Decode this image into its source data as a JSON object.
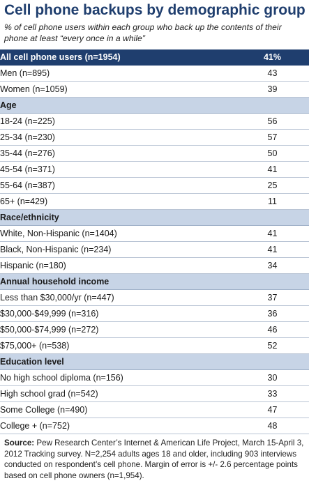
{
  "title": "Cell phone backups by demographic group",
  "subtitle": "% of cell phone users within each group who back up the contents of their phone at least “every once in a while”",
  "source_label": "Source:",
  "source_text": " Pew Research Center’s Internet & American Life Project, March 15-April 3, 2012 Tracking survey. N=2,254 adults ages 18 and older, including 903 interviews conducted on respondent’s cell phone. Margin of error is +/- 2.6 percentage points based on cell phone owners (n=1,954).",
  "chart_data": {
    "type": "table",
    "title": "Cell phone backups by demographic group",
    "total": {
      "label": "All cell phone users (n=1954)",
      "value": "41%"
    },
    "groups": [
      {
        "heading": "",
        "rows": [
          {
            "label": "Men (n=895)",
            "value": 43
          },
          {
            "label": "Women (n=1059)",
            "value": 39
          }
        ]
      },
      {
        "heading": "Age",
        "rows": [
          {
            "label": "18-24 (n=225)",
            "value": 56
          },
          {
            "label": "25-34 (n=230)",
            "value": 57
          },
          {
            "label": "35-44 (n=276)",
            "value": 50
          },
          {
            "label": "45-54 (n=371)",
            "value": 41
          },
          {
            "label": "55-64 (n=387)",
            "value": 25
          },
          {
            "label": "65+ (n=429)",
            "value": 11
          }
        ]
      },
      {
        "heading": "Race/ethnicity",
        "rows": [
          {
            "label": "White, Non-Hispanic (n=1404)",
            "value": 41
          },
          {
            "label": "Black, Non-Hispanic (n=234)",
            "value": 41
          },
          {
            "label": "Hispanic (n=180)",
            "value": 34
          }
        ]
      },
      {
        "heading": "Annual household income",
        "rows": [
          {
            "label": "Less than $30,000/yr (n=447)",
            "value": 37
          },
          {
            "label": "$30,000-$49,999 (n=316)",
            "value": 36
          },
          {
            "label": "$50,000-$74,999 (n=272)",
            "value": 46
          },
          {
            "label": "$75,000+ (n=538)",
            "value": 52
          }
        ]
      },
      {
        "heading": "Education level",
        "rows": [
          {
            "label": "No high school diploma (n=156)",
            "value": 30
          },
          {
            "label": "High school grad (n=542)",
            "value": 33
          },
          {
            "label": "Some College (n=490)",
            "value": 47
          },
          {
            "label": "College + (n=752)",
            "value": 48
          }
        ]
      }
    ]
  },
  "colors": {
    "header_bg": "#1f3e6e",
    "section_bg": "#c7d4e6",
    "title": "#1f3e6e",
    "rule": "#b9c4d4"
  }
}
